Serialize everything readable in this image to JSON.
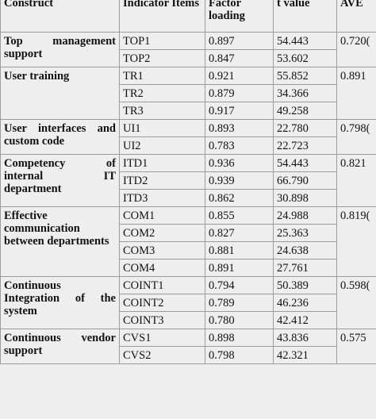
{
  "table": {
    "headers": [
      "Construct",
      "Indicator Items",
      "Factor loading",
      "t value",
      "AVE"
    ],
    "groups": [
      {
        "construct": "Top management support",
        "ave": "0.720(",
        "rows": [
          [
            "TOP1",
            "0.897",
            "54.443"
          ],
          [
            "TOP2",
            "0.847",
            "53.602"
          ]
        ]
      },
      {
        "construct": "User training",
        "ave": "0.891",
        "rows": [
          [
            "TR1",
            "0.921",
            "55.852"
          ],
          [
            "TR2",
            "0.879",
            "34.366"
          ],
          [
            "TR3",
            "0.917",
            "49.258"
          ]
        ]
      },
      {
        "construct": "User interfaces and custom code",
        "ave": "0.798(",
        "rows": [
          [
            "UI1",
            "0.893",
            "22.780"
          ],
          [
            "UI2",
            "0.783",
            "22.723"
          ]
        ]
      },
      {
        "construct": "Competency of internal IT department",
        "ave": "0.821",
        "rows": [
          [
            "ITD1",
            "0.936",
            "54.443"
          ],
          [
            "ITD2",
            "0.939",
            "66.790"
          ],
          [
            "ITD3",
            "0.862",
            "30.898"
          ]
        ]
      },
      {
        "construct": "Effective communication between departments",
        "ave": "0.819(",
        "rows": [
          [
            "COM1",
            "0.855",
            "24.988"
          ],
          [
            "COM2",
            "0.827",
            "25.363"
          ],
          [
            "COM3",
            "0.881",
            "24.638"
          ],
          [
            "COM4",
            "0.891",
            "27.761"
          ]
        ]
      },
      {
        "construct": "Continuous Integration of the system",
        "ave": "0.598(",
        "rows": [
          [
            "COINT1",
            "0.794",
            "50.389"
          ],
          [
            "COINT2",
            "0.789",
            "46.236"
          ],
          [
            "COINT3",
            "0.780",
            "42.412"
          ]
        ]
      },
      {
        "construct": "Continuous vendor support",
        "ave": "0.575",
        "rows": [
          [
            "CVS1",
            "0.898",
            "43.836"
          ],
          [
            "CVS2",
            "0.798",
            "42.321"
          ]
        ]
      }
    ]
  }
}
